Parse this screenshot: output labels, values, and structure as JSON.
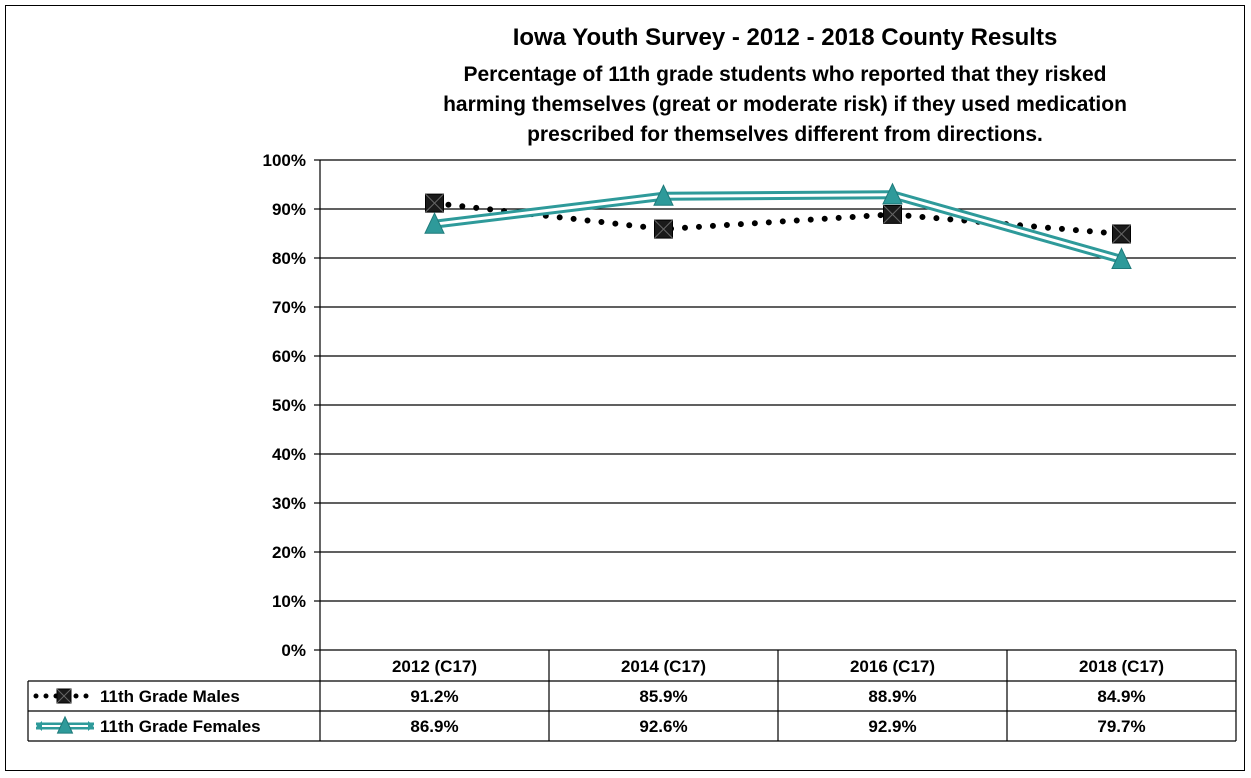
{
  "chart_data": {
    "type": "line",
    "title": "Iowa Youth Survey - 2012 - 2018 County Results",
    "subtitle_lines": [
      "Percentage of 11th grade students who reported that they risked",
      "harming themselves (great or moderate risk) if they used medication",
      "prescribed for themselves different from directions."
    ],
    "categories": [
      "2012 (C17)",
      "2014 (C17)",
      "2016 (C17)",
      "2018 (C17)"
    ],
    "ylim": [
      0,
      100
    ],
    "yticks": [
      0,
      10,
      20,
      30,
      40,
      50,
      60,
      70,
      80,
      90,
      100
    ],
    "ytick_labels": [
      "0%",
      "10%",
      "20%",
      "30%",
      "40%",
      "50%",
      "60%",
      "70%",
      "80%",
      "90%",
      "100%"
    ],
    "grid": true,
    "series": [
      {
        "name": "11th Grade Males",
        "values": [
          91.2,
          85.9,
          88.9,
          84.9
        ],
        "labels": [
          "91.2%",
          "85.9%",
          "88.9%",
          "84.9%"
        ],
        "color": "#000000",
        "marker": "square",
        "line": "dotted"
      },
      {
        "name": "11th Grade Females",
        "values": [
          86.9,
          92.6,
          92.9,
          79.7
        ],
        "labels": [
          "86.9%",
          "92.6%",
          "92.9%",
          "79.7%"
        ],
        "color": "#2E9A9A",
        "marker": "triangle",
        "line": "double"
      }
    ]
  }
}
